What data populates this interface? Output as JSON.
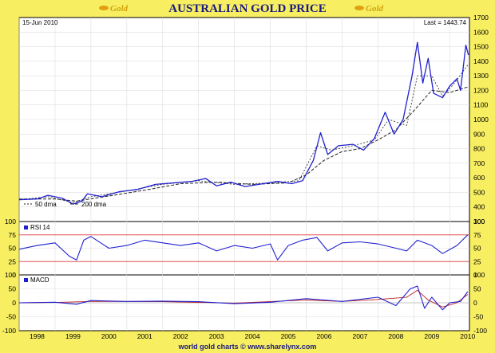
{
  "header": {
    "title": "AUSTRALIAN GOLD PRICE",
    "logo_left": "Gold",
    "logo_right": "Gold"
  },
  "footer": {
    "text": "world gold charts © www.sharelynx.com"
  },
  "colors": {
    "background": "#f7ee62",
    "price_line": "#2020d0",
    "ma_line": "#222222",
    "rsi_bands": "#e05050",
    "panel": "#ffffff"
  },
  "chart_data": [
    {
      "type": "line",
      "date_label": "15-Jun  2010",
      "last_label": "Last = 1443.74",
      "legend": [
        "50 dma",
        "200 dma"
      ],
      "ylim": [
        300,
        1700
      ],
      "yticks": [
        300,
        400,
        500,
        600,
        700,
        800,
        900,
        1000,
        1100,
        1200,
        1300,
        1400,
        1500,
        1600,
        1700
      ],
      "x_ticks": [
        "1998",
        "1999",
        "2000",
        "2001",
        "2002",
        "2003",
        "2004",
        "2005",
        "2006",
        "2007",
        "2008",
        "2009",
        "2010"
      ],
      "x_range": [
        1998.0,
        2010.55
      ],
      "price": [
        [
          1998.0,
          450
        ],
        [
          1998.5,
          455
        ],
        [
          1998.8,
          480
        ],
        [
          1999.2,
          460
        ],
        [
          1999.5,
          420
        ],
        [
          1999.75,
          440
        ],
        [
          1999.9,
          490
        ],
        [
          2000.3,
          470
        ],
        [
          2000.8,
          505
        ],
        [
          2001.3,
          520
        ],
        [
          2001.8,
          555
        ],
        [
          2002.3,
          565
        ],
        [
          2002.8,
          575
        ],
        [
          2003.2,
          595
        ],
        [
          2003.5,
          545
        ],
        [
          2003.9,
          570
        ],
        [
          2004.3,
          540
        ],
        [
          2004.8,
          560
        ],
        [
          2005.2,
          575
        ],
        [
          2005.6,
          560
        ],
        [
          2005.9,
          580
        ],
        [
          2006.2,
          720
        ],
        [
          2006.4,
          910
        ],
        [
          2006.6,
          760
        ],
        [
          2006.9,
          820
        ],
        [
          2007.3,
          830
        ],
        [
          2007.6,
          790
        ],
        [
          2007.9,
          870
        ],
        [
          2008.2,
          1050
        ],
        [
          2008.45,
          900
        ],
        [
          2008.7,
          1000
        ],
        [
          2008.95,
          1300
        ],
        [
          2009.1,
          1530
        ],
        [
          2009.25,
          1250
        ],
        [
          2009.4,
          1420
        ],
        [
          2009.55,
          1180
        ],
        [
          2009.8,
          1150
        ],
        [
          2010.0,
          1230
        ],
        [
          2010.2,
          1280
        ],
        [
          2010.3,
          1200
        ],
        [
          2010.45,
          1510
        ],
        [
          2010.52,
          1443.74
        ]
      ],
      "ma200": [
        [
          1998.0,
          455
        ],
        [
          1999.0,
          455
        ],
        [
          1999.6,
          440
        ],
        [
          2000.5,
          475
        ],
        [
          2001.5,
          515
        ],
        [
          2002.5,
          560
        ],
        [
          2003.5,
          570
        ],
        [
          2004.5,
          555
        ],
        [
          2005.5,
          565
        ],
        [
          2006.0,
          620
        ],
        [
          2006.5,
          720
        ],
        [
          2007.0,
          780
        ],
        [
          2007.5,
          800
        ],
        [
          2008.0,
          860
        ],
        [
          2008.5,
          930
        ],
        [
          2009.0,
          1060
        ],
        [
          2009.5,
          1200
        ],
        [
          2010.0,
          1185
        ],
        [
          2010.52,
          1225
        ]
      ],
      "ma50": [
        [
          1998.0,
          450
        ],
        [
          1998.8,
          470
        ],
        [
          1999.5,
          430
        ],
        [
          2000.0,
          470
        ],
        [
          2001.0,
          510
        ],
        [
          2002.0,
          555
        ],
        [
          2003.0,
          580
        ],
        [
          2004.0,
          555
        ],
        [
          2005.0,
          565
        ],
        [
          2005.8,
          580
        ],
        [
          2006.3,
          820
        ],
        [
          2006.7,
          790
        ],
        [
          2007.3,
          820
        ],
        [
          2007.9,
          860
        ],
        [
          2008.3,
          1000
        ],
        [
          2008.8,
          960
        ],
        [
          2009.1,
          1300
        ],
        [
          2009.5,
          1300
        ],
        [
          2009.8,
          1160
        ],
        [
          2010.1,
          1240
        ],
        [
          2010.52,
          1380
        ]
      ]
    },
    {
      "type": "line",
      "legend": [
        "RSI 14"
      ],
      "ylim": [
        0,
        100
      ],
      "yticks": [
        0,
        25,
        50,
        75,
        100
      ],
      "bands": [
        25,
        75
      ],
      "values": [
        [
          1998.0,
          48
        ],
        [
          1998.5,
          55
        ],
        [
          1999.0,
          60
        ],
        [
          1999.4,
          35
        ],
        [
          1999.6,
          28
        ],
        [
          1999.8,
          65
        ],
        [
          2000.0,
          72
        ],
        [
          2000.5,
          50
        ],
        [
          2001.0,
          55
        ],
        [
          2001.5,
          65
        ],
        [
          2002.0,
          60
        ],
        [
          2002.5,
          55
        ],
        [
          2003.0,
          60
        ],
        [
          2003.5,
          45
        ],
        [
          2004.0,
          55
        ],
        [
          2004.5,
          50
        ],
        [
          2005.0,
          58
        ],
        [
          2005.2,
          28
        ],
        [
          2005.5,
          55
        ],
        [
          2005.9,
          65
        ],
        [
          2006.3,
          70
        ],
        [
          2006.6,
          45
        ],
        [
          2007.0,
          60
        ],
        [
          2007.5,
          62
        ],
        [
          2008.0,
          58
        ],
        [
          2008.5,
          50
        ],
        [
          2008.8,
          45
        ],
        [
          2009.1,
          65
        ],
        [
          2009.5,
          55
        ],
        [
          2009.8,
          40
        ],
        [
          2010.2,
          55
        ],
        [
          2010.5,
          75
        ]
      ]
    },
    {
      "type": "line",
      "legend": [
        "MACD"
      ],
      "ylim": [
        -100,
        100
      ],
      "yticks": [
        -100,
        -50,
        0,
        50,
        100
      ],
      "values": [
        [
          1998.0,
          0
        ],
        [
          1999.0,
          2
        ],
        [
          1999.6,
          -5
        ],
        [
          2000.0,
          8
        ],
        [
          2001.0,
          5
        ],
        [
          2002.0,
          6
        ],
        [
          2003.0,
          4
        ],
        [
          2004.0,
          -3
        ],
        [
          2005.0,
          2
        ],
        [
          2006.0,
          15
        ],
        [
          2006.5,
          10
        ],
        [
          2007.0,
          5
        ],
        [
          2008.0,
          20
        ],
        [
          2008.5,
          -10
        ],
        [
          2008.9,
          50
        ],
        [
          2009.1,
          60
        ],
        [
          2009.3,
          -20
        ],
        [
          2009.5,
          20
        ],
        [
          2009.8,
          -25
        ],
        [
          2010.0,
          0
        ],
        [
          2010.3,
          5
        ],
        [
          2010.5,
          40
        ]
      ],
      "signal": [
        [
          1998.0,
          0
        ],
        [
          1999.0,
          1
        ],
        [
          2000.0,
          5
        ],
        [
          2002.0,
          4
        ],
        [
          2004.0,
          -1
        ],
        [
          2006.0,
          10
        ],
        [
          2007.0,
          5
        ],
        [
          2008.0,
          12
        ],
        [
          2008.8,
          20
        ],
        [
          2009.1,
          45
        ],
        [
          2009.4,
          10
        ],
        [
          2009.8,
          -15
        ],
        [
          2010.2,
          0
        ],
        [
          2010.5,
          30
        ]
      ]
    }
  ]
}
